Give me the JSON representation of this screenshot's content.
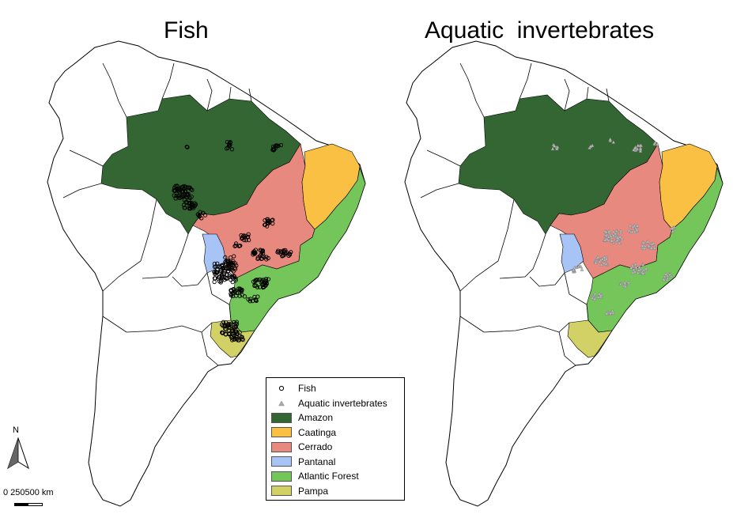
{
  "titles": {
    "left": "Fish",
    "right": "Aquatic  invertebrates"
  },
  "colors": {
    "Amazon": "#336633",
    "Caatinga": "#f9c044",
    "Cerrado": "#e8897f",
    "Pantanal": "#a8c3f5",
    "Atlantic Forest": "#74c65a",
    "Pampa": "#d2d166"
  },
  "legend": {
    "items": [
      {
        "label": "Fish",
        "symbol": "circle-icon"
      },
      {
        "label": "Aquatic invertebrates",
        "symbol": "triangle-icon"
      },
      {
        "label": "Amazon",
        "symbol": "box",
        "color": "#336633"
      },
      {
        "label": "Caatinga",
        "symbol": "box",
        "color": "#f9c044"
      },
      {
        "label": "Cerrado",
        "symbol": "box",
        "color": "#e8897f"
      },
      {
        "label": "Pantanal",
        "symbol": "box",
        "color": "#a8c3f5"
      },
      {
        "label": "Atlantic Forest",
        "symbol": "box",
        "color": "#74c65a"
      },
      {
        "label": "Pampa",
        "symbol": "box",
        "color": "#d2d166"
      }
    ]
  },
  "north_arrow": {
    "label": "N"
  },
  "scale": {
    "label": "0  250500 km"
  }
}
